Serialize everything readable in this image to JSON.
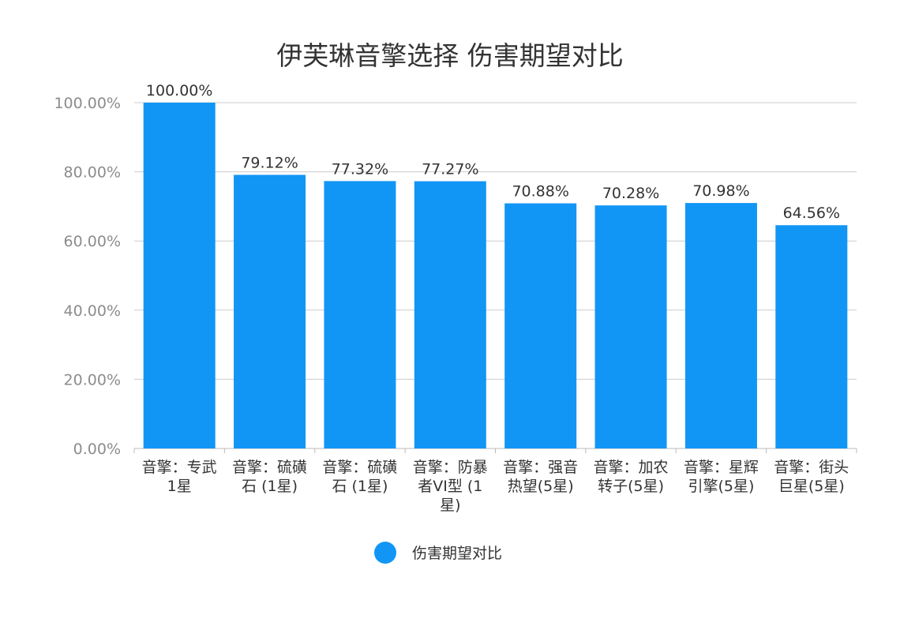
{
  "chart_data": {
    "type": "bar",
    "title": "伊芙琳音擎选择 伤害期望对比",
    "xlabel": "",
    "ylabel": "",
    "ylim": [
      0,
      100
    ],
    "y_tick_values": [
      0,
      20,
      40,
      60,
      80,
      100
    ],
    "y_tick_labels": [
      "0.00%",
      "20.00%",
      "40.00%",
      "60.00%",
      "80.00%",
      "100.00%"
    ],
    "categories": [
      [
        "音擎：专武",
        "1星"
      ],
      [
        "音擎：硫磺",
        "石 (1星)"
      ],
      [
        "音擎：硫磺",
        "石 (1星)"
      ],
      [
        "音擎：防暴",
        "者VI型 (1",
        "星)"
      ],
      [
        "音擎：强音",
        "热望(5星)"
      ],
      [
        "音擎：加农",
        "转子(5星)"
      ],
      [
        "音擎：星辉",
        "引擎(5星)"
      ],
      [
        "音擎：街头",
        "巨星(5星)"
      ]
    ],
    "series": [
      {
        "name": "伤害期望对比",
        "values": [
          100.0,
          79.12,
          77.32,
          77.27,
          70.88,
          70.28,
          70.98,
          64.56
        ],
        "labels": [
          "100.00%",
          "79.12%",
          "77.32%",
          "77.27%",
          "70.88%",
          "70.28%",
          "70.98%",
          "64.56%"
        ],
        "color": "#1296f5"
      }
    ],
    "grid": true,
    "legend_position": "bottom-center"
  },
  "colors": {
    "bar": "#1296f5",
    "grid": "#cccccc",
    "axis": "#bbbbbb",
    "title": "#333333",
    "tick": "#8c8c8c"
  }
}
